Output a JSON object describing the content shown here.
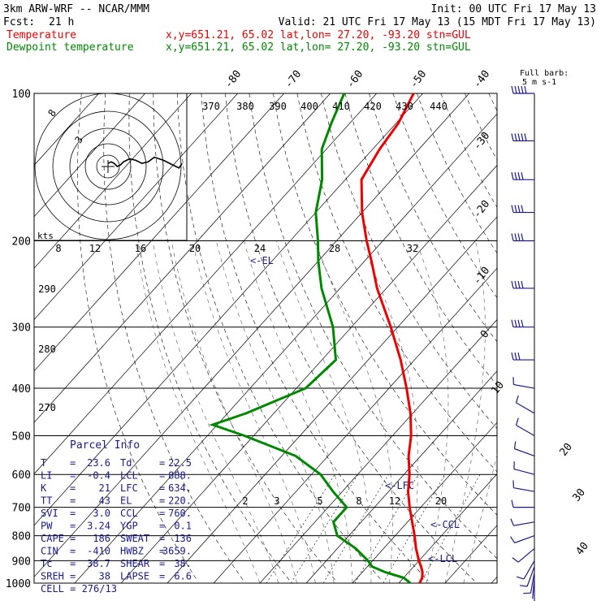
{
  "header": {
    "model": "3km ARW-WRF -- NCAR/MMM",
    "init": "Init: 00 UTC Fri 17 May 13",
    "fcst_label": "Fcst:",
    "fcst_value": "21 h",
    "valid": "Valid: 21 UTC Fri 17 May 13 (15 MDT Fri 17 May 13)"
  },
  "legend": [
    {
      "name": "Temperature",
      "info": "x,y=651.21, 65.02   lat,lon= 27.20, -93.20   stn=GUL",
      "color": "#ee0000"
    },
    {
      "name": "Dewpoint temperature",
      "info": "x,y=651.21, 65.02   lat,lon= 27.20, -93.20   stn=GUL",
      "color": "#008800"
    }
  ],
  "barb_legend": {
    "line1": "Full barb:",
    "line2": "5 m s-1"
  },
  "hodo": {
    "ring_labels": [
      "8",
      "3"
    ],
    "units": "kts"
  },
  "parcel": {
    "title": "Parcel Info",
    "rows": [
      {
        "k1": "T",
        "v1": "23.6",
        "k2": "Td",
        "v2": "22.5"
      },
      {
        "k1": "LI",
        "v1": "-0.4",
        "k2": "LCL",
        "v2": "888."
      },
      {
        "k1": "K",
        "v1": "21",
        "k2": "LFC",
        "v2": "634."
      },
      {
        "k1": "TT",
        "v1": "43",
        "k2": "EL",
        "v2": "220."
      },
      {
        "k1": "SVI",
        "v1": "3.0",
        "k2": "CCL",
        "v2": "760."
      },
      {
        "k1": "PW",
        "v1": "3.24",
        "k2": "YGP",
        "v2": "0.1"
      },
      {
        "k1": "CAPE",
        "v1": "186",
        "k2": "SWEAT",
        "v2": "136"
      },
      {
        "k1": "CIN",
        "v1": "-410",
        "k2": "HWBZ",
        "v2": "3659."
      },
      {
        "k1": "Tc",
        "v1": "38.7",
        "k2": "SHEAR",
        "v2": "38."
      },
      {
        "k1": "SREH",
        "v1": "38",
        "k2": "LAPSE",
        "v2": "6.6"
      }
    ],
    "cell": "CELL = 276/13"
  },
  "chart_data": {
    "type": "line",
    "title": "",
    "ylabel": "",
    "pressure_levels": [
      100,
      200,
      300,
      400,
      500,
      600,
      700,
      800,
      900,
      1000
    ],
    "pressure_tick_labels": [
      "100",
      "200",
      "300",
      "400",
      "500",
      "600",
      "700",
      "800",
      "900",
      "1000"
    ],
    "isotherm_labels": [
      "-80",
      "-70",
      "-60",
      "-50",
      "-40",
      "-30",
      "-20",
      "-10",
      "0",
      "10",
      "20",
      "30",
      "40"
    ],
    "theta_labels": [
      "370",
      "380",
      "390",
      "400",
      "410",
      "420",
      "430",
      "440"
    ],
    "theta_left_labels": [
      "290",
      "280",
      "270"
    ],
    "mixing_ratio_labels": [
      "2",
      "3",
      "5",
      "8",
      "12",
      "20"
    ],
    "ws_top_labels": [
      "8",
      "12",
      "16",
      "20",
      "24",
      "28",
      "32"
    ],
    "annotations": [
      {
        "label": "<-EL",
        "p": 220
      },
      {
        "label": "<-LFC",
        "p": 634
      },
      {
        "label": "<-CCL",
        "p": 760
      },
      {
        "label": "<-LCL",
        "p": 888
      }
    ],
    "series": [
      {
        "name": "Temperature",
        "color": "#ee0000",
        "points": [
          [
            1000,
            24.5
          ],
          [
            975,
            24.0
          ],
          [
            950,
            23.0
          ],
          [
            925,
            21.6
          ],
          [
            900,
            20.0
          ],
          [
            850,
            17.0
          ],
          [
            800,
            14.2
          ],
          [
            750,
            11.0
          ],
          [
            700,
            7.6
          ],
          [
            650,
            4.2
          ],
          [
            600,
            1.2
          ],
          [
            550,
            -2.6
          ],
          [
            500,
            -6.0
          ],
          [
            450,
            -10.5
          ],
          [
            400,
            -16.2
          ],
          [
            350,
            -23.0
          ],
          [
            300,
            -31.5
          ],
          [
            250,
            -42.0
          ],
          [
            220,
            -48.5
          ],
          [
            200,
            -53.5
          ],
          [
            175,
            -60.0
          ],
          [
            150,
            -66.5
          ],
          [
            130,
            -68.5
          ],
          [
            115,
            -69.5
          ],
          [
            100,
            -72.0
          ]
        ]
      },
      {
        "name": "Dewpoint temperature",
        "color": "#008800",
        "points": [
          [
            1000,
            22.5
          ],
          [
            975,
            20.0
          ],
          [
            950,
            15.0
          ],
          [
            925,
            11.0
          ],
          [
            900,
            9.0
          ],
          [
            850,
            4.0
          ],
          [
            800,
            -2.5
          ],
          [
            750,
            -6.0
          ],
          [
            700,
            -6.0
          ],
          [
            650,
            -12.0
          ],
          [
            600,
            -18.0
          ],
          [
            550,
            -27.0
          ],
          [
            500,
            -42.0
          ],
          [
            475,
            -51.0
          ],
          [
            450,
            -46.0
          ],
          [
            400,
            -38.0
          ],
          [
            350,
            -37.0
          ],
          [
            300,
            -44.0
          ],
          [
            250,
            -54.0
          ],
          [
            220,
            -60.0
          ],
          [
            200,
            -64.0
          ],
          [
            175,
            -70.0
          ],
          [
            150,
            -75.0
          ],
          [
            130,
            -81.0
          ],
          [
            115,
            -84.0
          ],
          [
            100,
            -87.0
          ]
        ]
      }
    ],
    "wind_profile": {
      "units": "m s-1",
      "levels": [
        {
          "p": 1000,
          "dir": 180,
          "spd": 3
        },
        {
          "p": 975,
          "dir": 185,
          "spd": 4
        },
        {
          "p": 950,
          "dir": 190,
          "spd": 5
        },
        {
          "p": 925,
          "dir": 200,
          "spd": 6
        },
        {
          "p": 900,
          "dir": 210,
          "spd": 6
        },
        {
          "p": 850,
          "dir": 230,
          "spd": 5
        },
        {
          "p": 800,
          "dir": 250,
          "spd": 5
        },
        {
          "p": 750,
          "dir": 260,
          "spd": 5
        },
        {
          "p": 700,
          "dir": 270,
          "spd": 5
        },
        {
          "p": 650,
          "dir": 280,
          "spd": 5
        },
        {
          "p": 600,
          "dir": 285,
          "spd": 6
        },
        {
          "p": 550,
          "dir": 290,
          "spd": 5
        },
        {
          "p": 500,
          "dir": 300,
          "spd": 5
        },
        {
          "p": 450,
          "dir": 300,
          "spd": 6
        },
        {
          "p": 400,
          "dir": 280,
          "spd": 8
        },
        {
          "p": 350,
          "dir": 270,
          "spd": 15
        },
        {
          "p": 300,
          "dir": 270,
          "spd": 20
        },
        {
          "p": 250,
          "dir": 270,
          "spd": 20
        },
        {
          "p": 200,
          "dir": 270,
          "spd": 20
        },
        {
          "p": 175,
          "dir": 270,
          "spd": 20
        },
        {
          "p": 150,
          "dir": 270,
          "spd": 20
        },
        {
          "p": 125,
          "dir": 270,
          "spd": 25
        },
        {
          "p": 100,
          "dir": 270,
          "spd": 25
        }
      ]
    },
    "hodograph": [
      [
        0,
        -2
      ],
      [
        2,
        -3
      ],
      [
        4,
        -2
      ],
      [
        6,
        0
      ],
      [
        8,
        -1
      ],
      [
        10,
        -3
      ],
      [
        14,
        -5
      ],
      [
        18,
        -4
      ],
      [
        22,
        -2
      ],
      [
        26,
        -3
      ],
      [
        30,
        -6
      ],
      [
        36,
        -4
      ],
      [
        42,
        -1
      ],
      [
        46,
        1
      ],
      [
        48,
        -2
      ]
    ]
  }
}
